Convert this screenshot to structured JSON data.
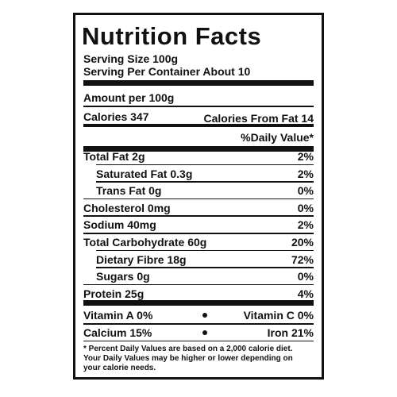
{
  "title": "Nutrition Facts",
  "serving_size": "Serving Size 100g",
  "servings": "Serving Per Container About 10",
  "amount_per": "Amount per 100g",
  "calories": "Calories 347",
  "calories_from_fat": "Calories From Fat 14",
  "daily_value_header": "%Daily Value*",
  "nutrients": [
    {
      "label": "Total Fat 2g",
      "dv": "2%",
      "indent": false
    },
    {
      "label": "Saturated Fat 0.3g",
      "dv": "2%",
      "indent": true
    },
    {
      "label": "Trans Fat 0g",
      "dv": "0%",
      "indent": true
    },
    {
      "label": "Cholesterol 0mg",
      "dv": "0%",
      "indent": false
    },
    {
      "label": "Sodium 40mg",
      "dv": "2%",
      "indent": false
    },
    {
      "label": "Total Carbohydrate 60g",
      "dv": "20%",
      "indent": false
    },
    {
      "label": "Dietary Fibre 18g",
      "dv": "72%",
      "indent": true
    },
    {
      "label": "Sugars 0g",
      "dv": "0%",
      "indent": true
    },
    {
      "label": "Protein 25g",
      "dv": "4%",
      "indent": false
    }
  ],
  "vitamins": [
    [
      "Vitamin A 0%",
      "Vitamin C 0%"
    ],
    [
      "Calcium 15%",
      "Iron 21%"
    ]
  ],
  "footnote": [
    "* Percent Daily Values are based on a 2,000 calorie diet.",
    "Your Daily Values may be higher or lower depending on",
    "your calorie needs."
  ]
}
